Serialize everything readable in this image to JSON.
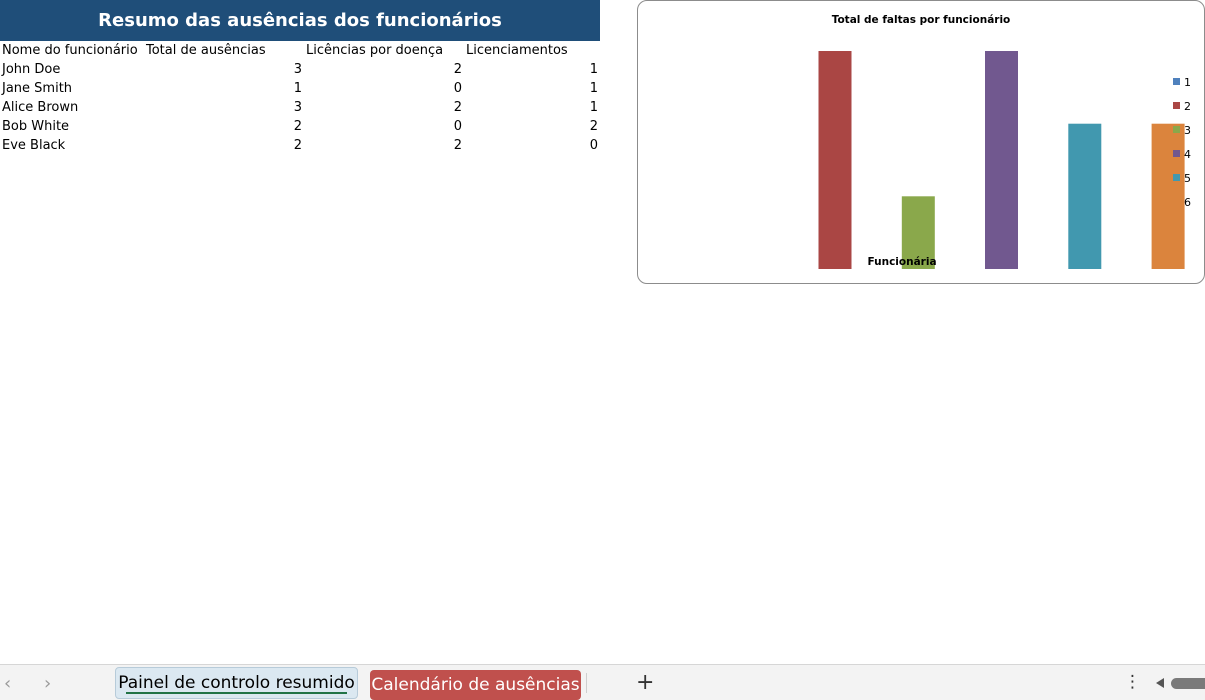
{
  "sheet": {
    "title": "Resumo das ausências dos funcionários",
    "headers": {
      "name": "Nome do funcionário",
      "total": "Total de ausências",
      "sick": "Licências por doença",
      "leave": "Licenciamentos"
    },
    "rows": [
      {
        "name": "John Doe",
        "total": "3",
        "sick": "2",
        "leave": "1"
      },
      {
        "name": "Jane Smith",
        "total": "1",
        "sick": "0",
        "leave": "1"
      },
      {
        "name": "Alice Brown",
        "total": "3",
        "sick": "2",
        "leave": "1"
      },
      {
        "name": "Bob White",
        "total": "2",
        "sick": "0",
        "leave": "2"
      },
      {
        "name": "Eve Black",
        "total": "2",
        "sick": "2",
        "leave": "0"
      }
    ]
  },
  "chart_data": {
    "type": "bar",
    "title": "Total de faltas por funcionário",
    "xlabel": "Funcionária",
    "ylabel": "",
    "categories": [
      "1",
      "2",
      "3",
      "4",
      "5",
      "6"
    ],
    "values": [
      0,
      3,
      1,
      3,
      2,
      2
    ],
    "ylim": [
      0,
      3
    ],
    "grid": false,
    "legend": "right",
    "colors": [
      "#4f81bd",
      "#aa4644",
      "#8aa84b",
      "#71588f",
      "#4198af",
      "#db843d"
    ]
  },
  "tabs": {
    "nav_prev": "‹",
    "nav_next": "›",
    "active": "Painel de controlo resumido",
    "second": "Calendário de ausências",
    "add": "+",
    "more": "⋮"
  }
}
